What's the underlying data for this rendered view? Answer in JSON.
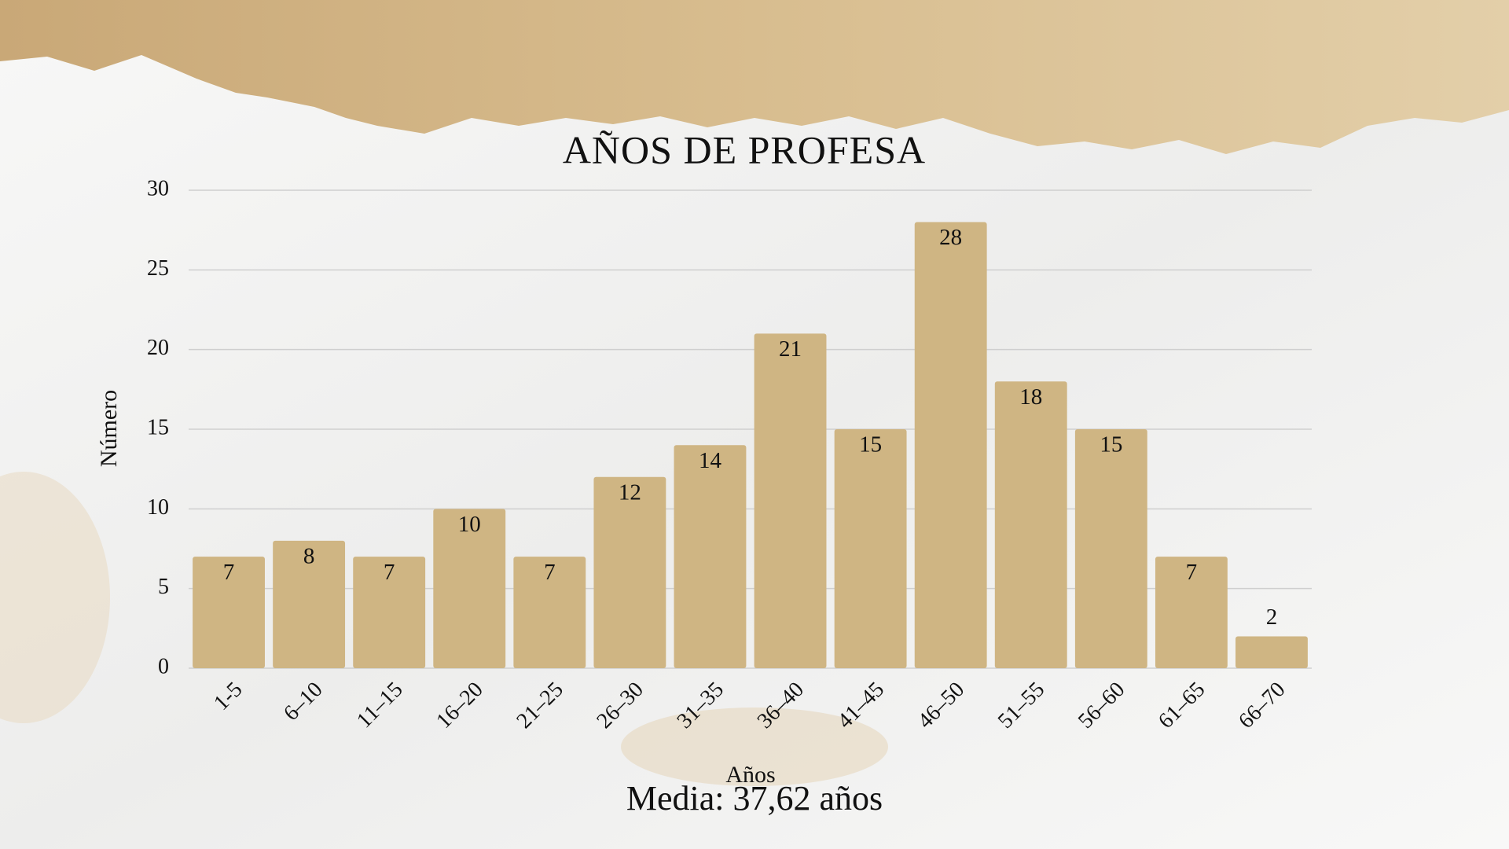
{
  "chart_data": {
    "type": "bar",
    "title": "AÑOS DE PROFESA",
    "x_label": "Años",
    "y_label": "Número",
    "categories": [
      "1-5",
      "6–10",
      "11–15",
      "16–20",
      "21–25",
      "26–30",
      "31–35",
      "36–40",
      "41–45",
      "46–50",
      "51–55",
      "56–60",
      "61–65",
      "66–70"
    ],
    "values": [
      7,
      8,
      7,
      10,
      7,
      12,
      14,
      21,
      15,
      28,
      18,
      15,
      7,
      2
    ],
    "color": "#cfb583",
    "ylim": [
      0,
      30
    ],
    "yticks": [
      0,
      5,
      10,
      15,
      20,
      25,
      30
    ],
    "grid": true,
    "annotation": "Media: 37,62 años"
  }
}
